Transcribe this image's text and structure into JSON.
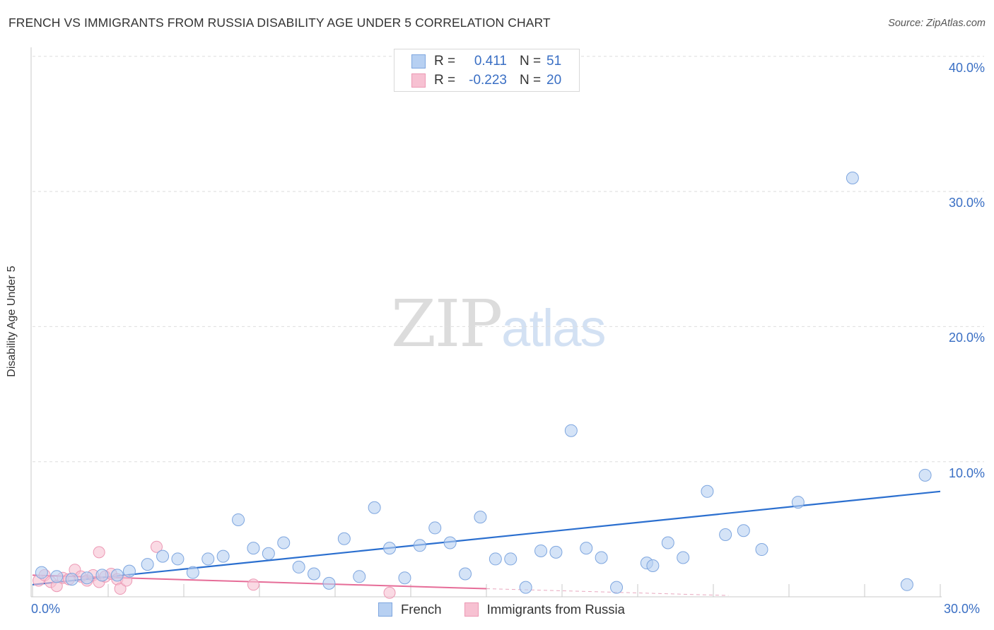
{
  "header": {
    "title": "FRENCH VS IMMIGRANTS FROM RUSSIA DISABILITY AGE UNDER 5 CORRELATION CHART",
    "source": "Source: ZipAtlas.com"
  },
  "watermark": {
    "part1": "ZIP",
    "part2": "atlas"
  },
  "legend_top": {
    "rows": [
      {
        "r_label": "R =",
        "r_value": "0.411",
        "n_label": "N =",
        "n_value": "51"
      },
      {
        "r_label": "R =",
        "r_value": "-0.223",
        "n_label": "N =",
        "n_value": "20"
      }
    ]
  },
  "legend_bottom": {
    "items": [
      "French",
      "Immigrants from Russia"
    ]
  },
  "y_ticks": [
    "40.0%",
    "30.0%",
    "20.0%",
    "10.0%"
  ],
  "x_ticks": [
    "0.0%",
    "30.0%"
  ],
  "colors": {
    "french_fill": "#b7d0f2",
    "french_stroke": "#7ea6df",
    "french_line": "#2b6fcf",
    "russia_fill": "#f7c1d2",
    "russia_stroke": "#ec98b4",
    "russia_line": "#e66d98",
    "tick_text": "#3a6fc4",
    "grid": "#dddddd"
  },
  "chart_data": {
    "type": "scatter",
    "title": "FRENCH VS IMMIGRANTS FROM RUSSIA DISABILITY AGE UNDER 5 CORRELATION CHART",
    "xlabel": "",
    "ylabel": "Disability Age Under 5",
    "xlim": [
      0,
      30
    ],
    "ylim": [
      0,
      41
    ],
    "y_ticks": [
      10,
      20,
      30,
      40
    ],
    "x_ticks": [
      0,
      30
    ],
    "series": [
      {
        "name": "French",
        "r": 0.411,
        "n": 51,
        "trend": {
          "x": [
            0,
            30
          ],
          "y": [
            0.9,
            7.8
          ]
        },
        "points": [
          [
            0.3,
            1.8
          ],
          [
            0.8,
            1.5
          ],
          [
            1.3,
            1.3
          ],
          [
            1.8,
            1.4
          ],
          [
            2.3,
            1.6
          ],
          [
            2.8,
            1.6
          ],
          [
            3.2,
            1.9
          ],
          [
            3.8,
            2.4
          ],
          [
            4.3,
            3.0
          ],
          [
            4.8,
            2.8
          ],
          [
            5.3,
            1.8
          ],
          [
            5.8,
            2.8
          ],
          [
            6.3,
            3.0
          ],
          [
            6.8,
            5.7
          ],
          [
            7.3,
            3.6
          ],
          [
            7.8,
            3.2
          ],
          [
            8.3,
            4.0
          ],
          [
            8.8,
            2.2
          ],
          [
            9.3,
            1.7
          ],
          [
            9.8,
            1.0
          ],
          [
            10.3,
            4.3
          ],
          [
            10.8,
            1.5
          ],
          [
            11.3,
            6.6
          ],
          [
            11.8,
            3.6
          ],
          [
            12.3,
            1.4
          ],
          [
            12.8,
            3.8
          ],
          [
            13.3,
            5.1
          ],
          [
            13.8,
            4.0
          ],
          [
            14.3,
            1.7
          ],
          [
            14.8,
            5.9
          ],
          [
            15.3,
            2.8
          ],
          [
            15.8,
            2.8
          ],
          [
            16.3,
            0.7
          ],
          [
            16.8,
            3.4
          ],
          [
            17.3,
            3.3
          ],
          [
            17.8,
            12.3
          ],
          [
            18.3,
            3.6
          ],
          [
            18.8,
            2.9
          ],
          [
            19.3,
            0.7
          ],
          [
            20.3,
            2.5
          ],
          [
            20.5,
            2.3
          ],
          [
            21.0,
            4.0
          ],
          [
            21.5,
            2.9
          ],
          [
            22.3,
            7.8
          ],
          [
            22.9,
            4.6
          ],
          [
            23.5,
            4.9
          ],
          [
            24.1,
            3.5
          ],
          [
            25.3,
            7.0
          ],
          [
            27.1,
            31.0
          ],
          [
            28.9,
            0.9
          ],
          [
            29.5,
            9.0
          ]
        ]
      },
      {
        "name": "Immigrants from Russia",
        "r": -0.223,
        "n": 20,
        "trend": {
          "x": [
            0,
            15.0
          ],
          "y": [
            1.6,
            0.6
          ]
        },
        "trend_dashed_extension": {
          "x": [
            15.0,
            23.0
          ],
          "y": [
            0.6,
            0.1
          ]
        },
        "points": [
          [
            0.2,
            1.2
          ],
          [
            0.4,
            1.6
          ],
          [
            0.6,
            1.1
          ],
          [
            0.8,
            0.8
          ],
          [
            1.0,
            1.4
          ],
          [
            1.2,
            1.3
          ],
          [
            1.4,
            2.0
          ],
          [
            1.6,
            1.5
          ],
          [
            1.8,
            1.2
          ],
          [
            2.0,
            1.6
          ],
          [
            2.2,
            1.1
          ],
          [
            2.4,
            1.5
          ],
          [
            2.6,
            1.7
          ],
          [
            2.8,
            1.3
          ],
          [
            2.9,
            0.6
          ],
          [
            3.1,
            1.2
          ],
          [
            2.2,
            3.3
          ],
          [
            4.1,
            3.7
          ],
          [
            7.3,
            0.9
          ],
          [
            11.8,
            0.3
          ]
        ]
      }
    ]
  }
}
